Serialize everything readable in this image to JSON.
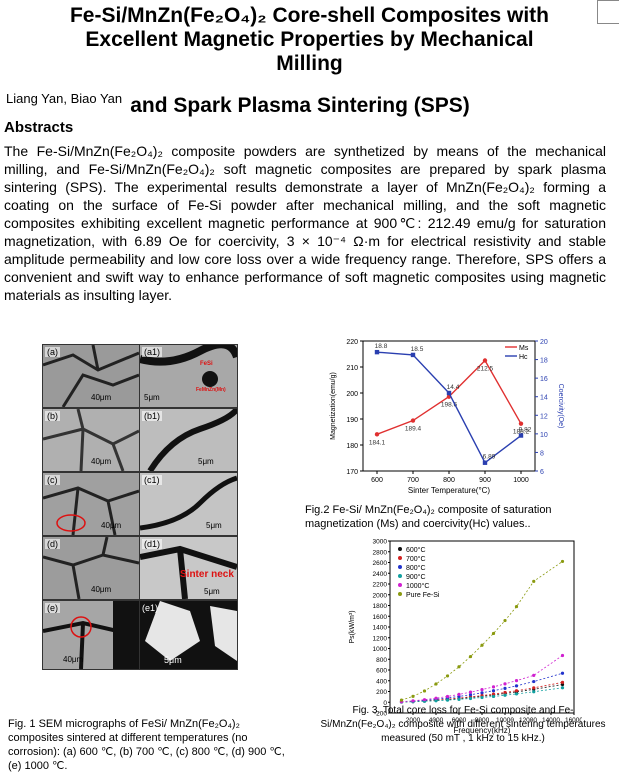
{
  "title": {
    "line1": "Fe-Si/MnZn(Fe₂O₄)₂ Core-shell Composites with",
    "line2": "Excellent Magnetic Properties by Mechanical",
    "line3": "Milling",
    "line4": "and Spark Plasma Sintering (SPS)"
  },
  "authors": "Liang Yan,  Biao Yan",
  "abstract_heading": "Abstracts",
  "abstract": "The Fe-Si/MnZn(Fe₂O₄)₂ composite powders are synthetized by means of the mechanical milling, and Fe-Si/MnZn(Fe₂O₄)₂ soft magnetic composites are prepared by spark plasma sintering (SPS). The experimental results demonstrate a layer of MnZn(Fe₂O₄)₂ forming a coating on the surface of Fe-Si powder after mechanical milling, and the soft magnetic composites exhibiting excellent magnetic performance at 900℃: 212.49 emu/g for saturation magnetization, with 6.89 Oe for coercivity, 3 × 10⁻⁴ Ω·m for electrical resistivity and stable amplitude permeability and low core loss over a wide frequency range. Therefore, SPS offers a convenient and swift way to enhance performance of soft magnetic composites using magnetic materials as insulting layer.",
  "fig1": {
    "labels": [
      "(a)",
      "(a1)",
      "(b)",
      "(b1)",
      "(c)",
      "(c1)",
      "(d)",
      "(d1)",
      "(e)",
      "(e1)"
    ],
    "scales": [
      "40μm",
      "5μm",
      "40μm",
      "5μm",
      "40μm",
      "5μm",
      "40μm",
      "5μm",
      "40μm",
      "5μm"
    ],
    "annot_fesi": "FeSi",
    "annot_mnzn": "FeMnZn(Mn)",
    "annot_neck": "Sinter neck",
    "caption": "Fig. 1 SEM micrographs of FeSi/ MnZn(Fe₂O₄)₂ composites sintered at different temperatures (no corrosion): (a) 600 ℃, (b) 700 ℃, (c) 800 ℃, (d) 900 ℃, (e) 1000 ℃."
  },
  "fig2_caption": "Fig.2 Fe-Si/ MnZn(Fe₂O₄)₂ composite of saturation magnetization (Ms) and coercivity(Hc) values..",
  "fig3_caption": "Fig. 3. Total core loss for Fe-Si composite and Fe-Si/MnZn(Fe₂O₄)₂ composite with different sintering temperatures measured (50 mT , 1 kHz to 15 kHz.)",
  "chart_data": [
    {
      "type": "line",
      "x": [
        600,
        700,
        800,
        900,
        1000
      ],
      "xlabel": "Sinter Temperature(°C)",
      "ylabel": "Magnetization(emu/g)",
      "y2label": "Coercivity(Oe)",
      "ylim": [
        170,
        220
      ],
      "y2lim": [
        6,
        20
      ],
      "xticks": [
        600,
        700,
        800,
        900,
        1000
      ],
      "yticks": [
        170,
        180,
        190,
        200,
        210,
        220
      ],
      "y2ticks": [
        6,
        8,
        10,
        12,
        14,
        16,
        18,
        20
      ],
      "series": [
        {
          "name": "Ms",
          "color": "#e03030",
          "axis": "left",
          "values": [
            184.1,
            189.4,
            198.6,
            212.5,
            188.2
          ],
          "labels": [
            "184.1",
            "189.4",
            "198.6",
            "212.5",
            "188.2"
          ]
        },
        {
          "name": "Hc",
          "color": "#2a3fb0",
          "axis": "right",
          "values": [
            18.8,
            18.5,
            14.4,
            6.89,
            9.82
          ],
          "labels": [
            "18.8",
            "18.5",
            "14.4",
            "6.89",
            "9.82"
          ]
        }
      ],
      "legend": "top-right"
    },
    {
      "type": "scatter",
      "xlabel": "Frequency(kHz)",
      "ylabel": "Ps(kW/m³)",
      "xlim": [
        0,
        16000
      ],
      "ylim": [
        -200,
        3000
      ],
      "xticks": [
        2000,
        4000,
        6000,
        8000,
        10000,
        12000,
        14000,
        16000
      ],
      "yticks": [
        -200,
        0,
        200,
        400,
        600,
        800,
        1000,
        1200,
        1400,
        1600,
        1800,
        2000,
        2200,
        2400,
        2600,
        2800,
        3000
      ],
      "x": [
        1000,
        2000,
        3000,
        4000,
        5000,
        6000,
        7000,
        8000,
        9000,
        10000,
        11000,
        12500,
        15000
      ],
      "series": [
        {
          "name": "600°C",
          "color": "#111111",
          "values": [
            5,
            12,
            22,
            35,
            50,
            68,
            88,
            110,
            135,
            162,
            192,
            240,
            330
          ]
        },
        {
          "name": "700°C",
          "color": "#d22222",
          "values": [
            6,
            14,
            26,
            40,
            58,
            78,
            100,
            125,
            152,
            182,
            214,
            268,
            370
          ]
        },
        {
          "name": "800°C",
          "color": "#2233cc",
          "values": [
            8,
            20,
            36,
            56,
            80,
            108,
            140,
            176,
            215,
            258,
            305,
            385,
            540
          ]
        },
        {
          "name": "900°C",
          "color": "#12a0a0",
          "values": [
            4,
            10,
            18,
            28,
            40,
            54,
            70,
            88,
            108,
            130,
            155,
            195,
            270
          ]
        },
        {
          "name": "1000°C",
          "color": "#d020d0",
          "values": [
            10,
            26,
            48,
            76,
            108,
            146,
            188,
            235,
            286,
            342,
            402,
            500,
            870
          ]
        },
        {
          "name": "Pure Fe-Si",
          "color": "#8a9a10",
          "values": [
            40,
            110,
            210,
            340,
            490,
            660,
            850,
            1060,
            1280,
            1520,
            1780,
            2250,
            2620
          ]
        }
      ],
      "legend": "top-left"
    }
  ]
}
